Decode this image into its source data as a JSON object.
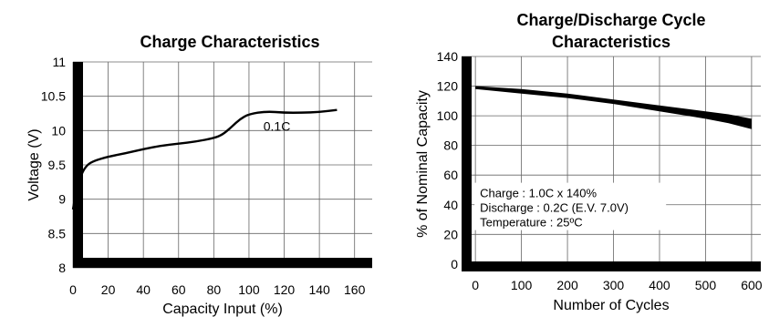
{
  "chart_data": [
    {
      "type": "line",
      "title": "Charge Characteristics",
      "xlabel": "Capacity Input (%)",
      "ylabel": "Voltage (V)",
      "xlim": [
        0,
        170
      ],
      "ylim": [
        8,
        11
      ],
      "x_ticks": [
        "0",
        "20",
        "40",
        "60",
        "80",
        "100",
        "120",
        "140",
        "160"
      ],
      "y_ticks": [
        "11",
        "10.5",
        "10",
        "9.5",
        "9",
        "8.5",
        "8"
      ],
      "grid": true,
      "series": [
        {
          "name": "0.1C",
          "x": [
            0,
            2,
            5,
            8,
            12,
            20,
            30,
            40,
            50,
            60,
            70,
            80,
            85,
            90,
            95,
            100,
            110,
            120,
            130,
            140,
            150
          ],
          "y": [
            8.85,
            9.15,
            9.38,
            9.5,
            9.56,
            9.62,
            9.67,
            9.73,
            9.78,
            9.81,
            9.84,
            9.89,
            9.94,
            10.05,
            10.17,
            10.24,
            10.28,
            10.26,
            10.26,
            10.27,
            10.3
          ]
        }
      ]
    },
    {
      "type": "area",
      "title": "Charge/Discharge Cycle\nCharacteristics",
      "xlabel": "Number of Cycles",
      "ylabel": "% of Nominal Capacity",
      "xlim": [
        -30,
        620
      ],
      "ylim": [
        -5,
        140
      ],
      "x_ticks": [
        "0",
        "100",
        "200",
        "300",
        "400",
        "500",
        "600"
      ],
      "y_ticks": [
        "140",
        "120",
        "100",
        "80",
        "60",
        "40",
        "20",
        "0"
      ],
      "grid": true,
      "band": {
        "x": [
          0,
          100,
          200,
          300,
          400,
          500,
          550,
          600
        ],
        "upper": [
          120,
          118,
          115,
          111,
          107,
          103,
          101,
          98
        ],
        "lower": [
          118,
          115,
          112,
          108,
          103,
          98,
          95,
          91
        ]
      },
      "annotations": [
        "Charge : 1.0C x 140%",
        "Discharge : 0.2C (E.V. 7.0V)",
        "Temperature : 25ºC"
      ]
    }
  ]
}
